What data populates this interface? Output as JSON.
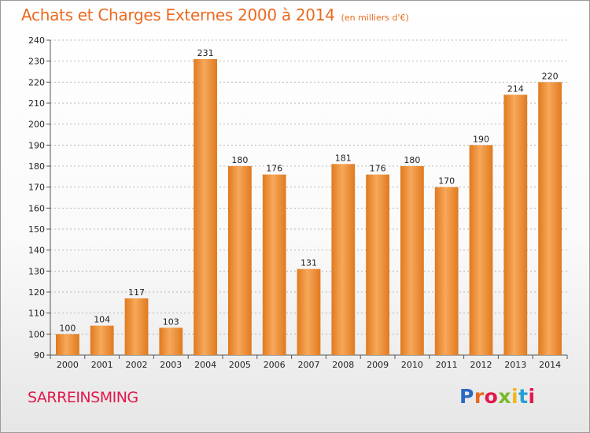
{
  "chart_title": "Achats et Charges Externes 2000 à 2014",
  "chart_unit": "(en milliers d'€)",
  "place_name": "SARREINSMING",
  "brand": {
    "name": "Proxiti",
    "letter_colors": [
      "#2a6ac3",
      "#e86b1d",
      "#e0194c",
      "#7ab929",
      "#f2b51b",
      "#23a0d6",
      "#e0194c"
    ]
  },
  "colors": {
    "bar_light": "#f7a85a",
    "bar_dark": "#e07a1f",
    "grid": "#b8b8b8",
    "text": "#222222"
  },
  "chart_data": {
    "type": "bar",
    "title": "Achats et Charges Externes 2000 à 2014",
    "categories": [
      "2000",
      "2001",
      "2002",
      "2003",
      "2004",
      "2005",
      "2006",
      "2007",
      "2008",
      "2009",
      "2010",
      "2011",
      "2012",
      "2013",
      "2014"
    ],
    "values": [
      100,
      104,
      117,
      103,
      231,
      180,
      176,
      131,
      181,
      176,
      180,
      170,
      190,
      214,
      220
    ],
    "ylim": [
      90,
      240
    ],
    "yticks": [
      90,
      100,
      110,
      120,
      130,
      140,
      150,
      160,
      170,
      180,
      190,
      200,
      210,
      220,
      230,
      240
    ],
    "grid": true,
    "data_labels": true,
    "xlabel": "",
    "ylabel": ""
  }
}
